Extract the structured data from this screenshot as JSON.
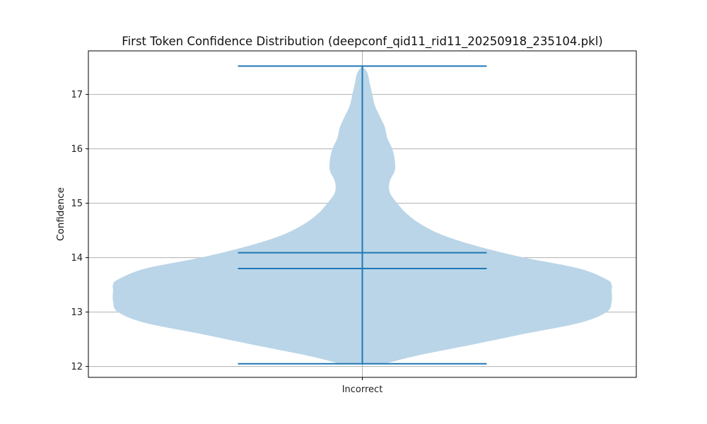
{
  "chart_data": {
    "type": "violin",
    "title": "First Token Confidence Distribution (deepconf_qid11_rid11_20250918_235104.pkl)",
    "xlabel": "",
    "ylabel": "Confidence",
    "categories": [
      "Incorrect"
    ],
    "ylim": [
      11.8,
      17.8
    ],
    "yticks": [
      12,
      13,
      14,
      15,
      16,
      17
    ],
    "grid": true,
    "colors": {
      "body": "#bad5e8",
      "lines": "#1f77b4",
      "grid": "#b0b0b0"
    },
    "violins": [
      {
        "category": "Incorrect",
        "min": 12.05,
        "max": 17.52,
        "mean": 14.09,
        "median": 13.8,
        "density": [
          [
            12.05,
            0.09
          ],
          [
            12.2,
            0.22
          ],
          [
            12.4,
            0.44
          ],
          [
            12.6,
            0.65
          ],
          [
            12.8,
            0.87
          ],
          [
            13.0,
            0.98
          ],
          [
            13.2,
            1.0
          ],
          [
            13.4,
            1.0
          ],
          [
            13.5,
            1.0
          ],
          [
            13.6,
            0.98
          ],
          [
            13.8,
            0.87
          ],
          [
            14.0,
            0.65
          ],
          [
            14.2,
            0.47
          ],
          [
            14.4,
            0.33
          ],
          [
            14.6,
            0.24
          ],
          [
            14.8,
            0.18
          ],
          [
            15.0,
            0.14
          ],
          [
            15.2,
            0.11
          ],
          [
            15.4,
            0.11
          ],
          [
            15.6,
            0.13
          ],
          [
            15.8,
            0.13
          ],
          [
            16.0,
            0.12
          ],
          [
            16.2,
            0.1
          ],
          [
            16.4,
            0.09
          ],
          [
            16.6,
            0.07
          ],
          [
            16.8,
            0.05
          ],
          [
            17.0,
            0.04
          ],
          [
            17.2,
            0.03
          ],
          [
            17.4,
            0.02
          ],
          [
            17.52,
            0.0
          ]
        ]
      }
    ]
  }
}
